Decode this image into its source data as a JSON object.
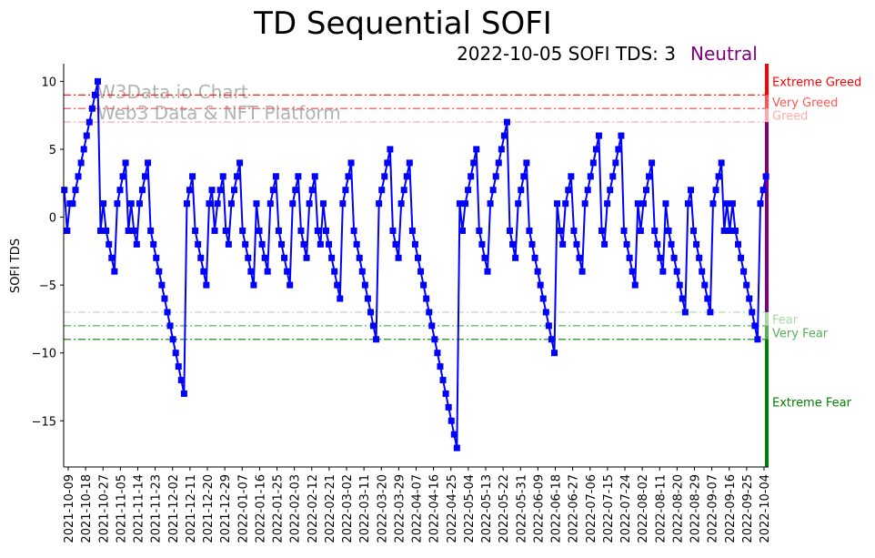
{
  "chart_data": {
    "type": "line",
    "title": "TD Sequential SOFI",
    "subtitle": "2022-10-05 SOFI TDS: 3",
    "status": "Neutral",
    "ylabel": "SOFI TDS",
    "xlabel": "",
    "ylim": [
      -18.4,
      11.3
    ],
    "yticks": [
      10,
      5,
      0,
      -5,
      -10,
      -15
    ],
    "x_start": "2021-10-07",
    "x_end": "2022-10-05",
    "xticks": [
      "2021-10-09",
      "2021-10-18",
      "2021-10-27",
      "2021-11-05",
      "2021-11-14",
      "2021-11-23",
      "2021-12-02",
      "2021-12-11",
      "2021-12-20",
      "2021-12-29",
      "2022-01-07",
      "2022-01-16",
      "2022-01-25",
      "2022-02-03",
      "2022-02-12",
      "2022-02-21",
      "2022-03-02",
      "2022-03-11",
      "2022-03-20",
      "2022-03-29",
      "2022-04-07",
      "2022-04-16",
      "2022-04-25",
      "2022-05-04",
      "2022-05-13",
      "2022-05-22",
      "2022-05-31",
      "2022-06-09",
      "2022-06-18",
      "2022-06-27",
      "2022-07-06",
      "2022-07-15",
      "2022-07-24",
      "2022-08-02",
      "2022-08-11",
      "2022-08-20",
      "2022-08-29",
      "2022-09-07",
      "2022-09-16",
      "2022-09-25",
      "2022-10-04"
    ],
    "series": [
      {
        "name": "SOFI TDS",
        "color": "#0000ff",
        "values": [
          2,
          -1,
          1,
          1,
          2,
          3,
          4,
          5,
          6,
          7,
          8,
          9,
          10,
          -1,
          1,
          -1,
          -2,
          -3,
          -4,
          1,
          2,
          3,
          4,
          -1,
          1,
          -1,
          -2,
          1,
          2,
          3,
          4,
          -1,
          -2,
          -3,
          -4,
          -5,
          -6,
          -7,
          -8,
          -9,
          -10,
          -11,
          -12,
          -13,
          1,
          2,
          3,
          -1,
          -2,
          -3,
          -4,
          -5,
          1,
          2,
          -1,
          1,
          2,
          3,
          -1,
          -2,
          1,
          2,
          3,
          4,
          -1,
          -2,
          -3,
          -4,
          -5,
          1,
          -1,
          -2,
          -3,
          -4,
          1,
          2,
          3,
          -1,
          -2,
          -3,
          -4,
          -5,
          1,
          2,
          3,
          -1,
          -2,
          -3,
          1,
          2,
          3,
          -1,
          -2,
          1,
          -1,
          -2,
          -3,
          -4,
          -5,
          -6,
          1,
          2,
          3,
          4,
          -1,
          -2,
          -3,
          -4,
          -5,
          -6,
          -7,
          -8,
          -9,
          1,
          2,
          3,
          4,
          5,
          -1,
          -2,
          -3,
          1,
          2,
          3,
          4,
          -1,
          -2,
          -3,
          -4,
          -5,
          -6,
          -7,
          -8,
          -9,
          -10,
          -11,
          -12,
          -13,
          -14,
          -15,
          -16,
          -17,
          1,
          -1,
          1,
          2,
          3,
          4,
          5,
          -1,
          -2,
          -3,
          -4,
          1,
          2,
          3,
          4,
          5,
          6,
          7,
          -1,
          -2,
          -3,
          1,
          2,
          3,
          4,
          -1,
          -2,
          -3,
          -4,
          -5,
          -6,
          -7,
          -8,
          -9,
          -10,
          1,
          -1,
          -2,
          1,
          2,
          3,
          -1,
          -2,
          -3,
          -4,
          1,
          2,
          3,
          4,
          5,
          6,
          -1,
          -2,
          1,
          2,
          3,
          4,
          5,
          6,
          -1,
          -2,
          -3,
          -4,
          -5,
          1,
          -1,
          1,
          2,
          3,
          4,
          -1,
          -2,
          -3,
          -4,
          1,
          -1,
          -2,
          -3,
          -4,
          -5,
          -6,
          -7,
          1,
          2,
          -1,
          -2,
          -3,
          -4,
          -5,
          -6,
          -7,
          1,
          2,
          3,
          4,
          -1,
          1,
          -1,
          1,
          -1,
          -2,
          -3,
          -4,
          -5,
          -6,
          -7,
          -8,
          -9,
          1,
          2,
          3
        ]
      }
    ],
    "reference_lines": [
      {
        "value": 9,
        "color": "#ff0000"
      },
      {
        "value": 8,
        "color": "#ff5555"
      },
      {
        "value": 7,
        "color": "#ffaaaa"
      },
      {
        "value": -7,
        "color": "#a8d8a8"
      },
      {
        "value": -8,
        "color": "#4cb84c"
      },
      {
        "value": -9,
        "color": "#008000"
      }
    ],
    "zones": [
      {
        "label": "Extreme Greed",
        "from": 11.3,
        "to": 9,
        "color": "#ff0000",
        "label_value": 10
      },
      {
        "label": "Very Greed",
        "from": 9,
        "to": 8,
        "color": "#ff5555",
        "label_value": 8.5
      },
      {
        "label": "Greed",
        "from": 8,
        "to": 7,
        "color": "#ffaaaa",
        "label_value": 7.5
      },
      {
        "label": "",
        "from": 7,
        "to": -7,
        "color": "#800080"
      },
      {
        "label": "Fear",
        "from": -7,
        "to": -8,
        "color": "#a8d8a8",
        "label_value": -7.5
      },
      {
        "label": "Very Fear",
        "from": -8,
        "to": -9,
        "color": "#55b055",
        "label_value": -8.5
      },
      {
        "label": "Extreme Fear",
        "from": -9,
        "to": -18.4,
        "color": "#008000",
        "label_value": -13.6
      }
    ],
    "status_color": "#800080",
    "watermark": [
      "W3Data.io Chart",
      "Web3 Data & NFT Platform"
    ]
  }
}
